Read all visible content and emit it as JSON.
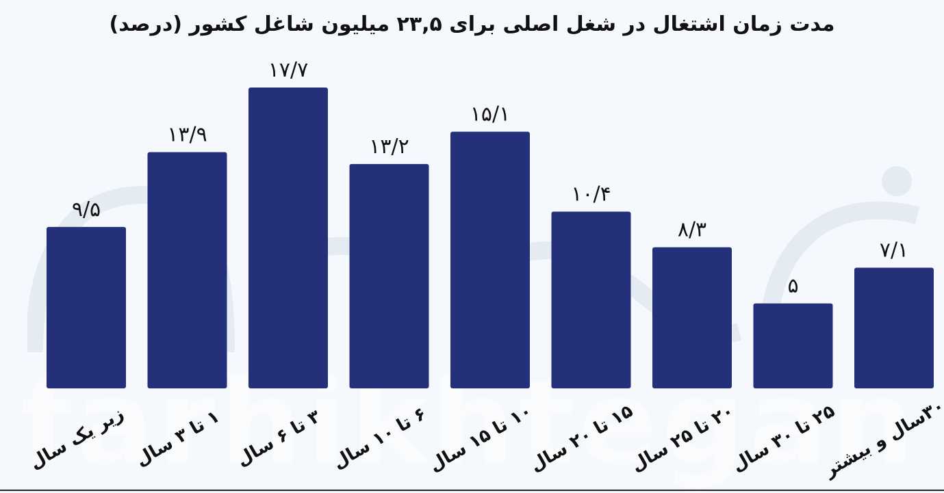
{
  "title": "مدت زمان اشتغال در شغل اصلی برای ۲۳,۵ میلیون شاغل کشور (درصد)",
  "watermark": "farhikhtegan",
  "colors": {
    "bar": "#25307a",
    "background": "#f5f8fc",
    "text": "#111111"
  },
  "chart_data": {
    "type": "bar",
    "title": "مدت زمان اشتغال در شغل اصلی برای ۲۳,۵ میلیون شاغل کشور (درصد)",
    "categories": [
      "زیر یک سال",
      "۱ تا ۳ سال",
      "۳ تا ۶ سال",
      "۶ تا ۱۰ سال",
      "۱۰ تا ۱۵ سال",
      "۱۵ تا ۲۰ سال",
      "۲۰ تا ۲۵ سال",
      "۲۵ تا ۳۰ سال",
      "۳۰سال و بیشتر"
    ],
    "values": [
      9.5,
      13.9,
      17.7,
      13.2,
      15.1,
      10.4,
      8.3,
      5,
      7.1
    ],
    "value_labels": [
      "۹/۵",
      "۱۳/۹",
      "۱۷/۷",
      "۱۳/۲",
      "۱۵/۱",
      "۱۰/۴",
      "۸/۳",
      "۵",
      "۷/۱"
    ],
    "ylim": [
      0,
      17.7
    ],
    "grid": false,
    "legend": "none",
    "xlabel": "",
    "ylabel": ""
  }
}
